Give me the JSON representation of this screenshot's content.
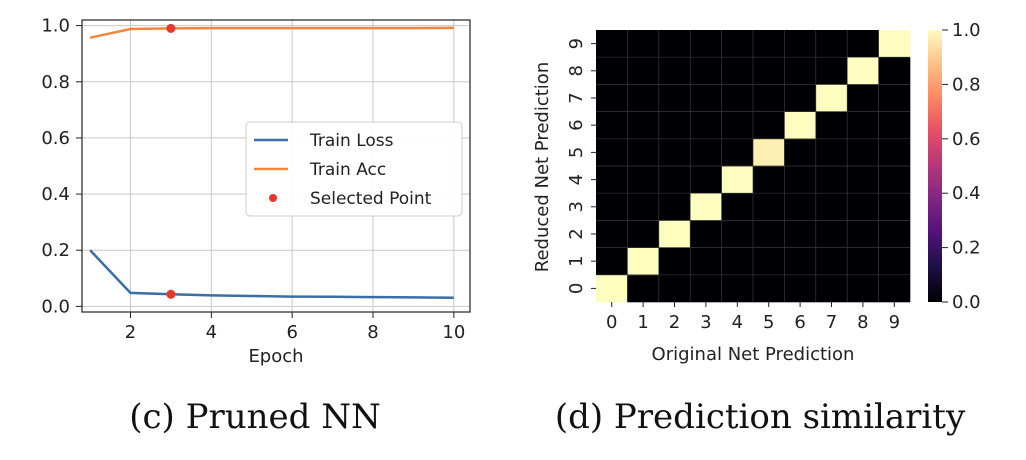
{
  "chart_data": [
    {
      "type": "line",
      "caption": "(c) Pruned NN",
      "xlabel": "Epoch",
      "ylabel": "",
      "x": [
        1,
        2,
        3,
        4,
        5,
        6,
        7,
        8,
        9,
        10
      ],
      "xlim": [
        0.8,
        10.4
      ],
      "ylim": [
        -0.02,
        1.02
      ],
      "xticks": [
        2,
        4,
        6,
        8,
        10
      ],
      "yticks": [
        0.0,
        0.2,
        0.4,
        0.6,
        0.8,
        1.0
      ],
      "xtick_labels": [
        "2",
        "4",
        "6",
        "8",
        "10"
      ],
      "ytick_labels": [
        "0.0",
        "0.2",
        "0.4",
        "0.6",
        "0.8",
        "1.0"
      ],
      "grid": true,
      "legend": "center-right",
      "series": [
        {
          "name": "Train Loss",
          "color": "#3b6ea5",
          "values": [
            0.2,
            0.048,
            0.043,
            0.039,
            0.037,
            0.035,
            0.034,
            0.033,
            0.032,
            0.031
          ]
        },
        {
          "name": "Train Acc",
          "color": "#f0883c",
          "values": [
            0.957,
            0.988,
            0.99,
            0.991,
            0.991,
            0.991,
            0.991,
            0.991,
            0.991,
            0.992
          ]
        }
      ],
      "points": {
        "name": "Selected Point",
        "color": "#e8382c",
        "x": [
          3,
          3
        ],
        "y": [
          0.99,
          0.043
        ]
      }
    },
    {
      "type": "heatmap",
      "caption": "(d) Prediction similarity",
      "xlabel": "Original Net Prediction",
      "ylabel": "Reduced Net Prediction",
      "x_categories": [
        "0",
        "1",
        "2",
        "3",
        "4",
        "5",
        "6",
        "7",
        "8",
        "9"
      ],
      "y_categories": [
        "0",
        "1",
        "2",
        "3",
        "4",
        "5",
        "6",
        "7",
        "8",
        "9"
      ],
      "diagonal_values": [
        1.0,
        1.0,
        1.0,
        1.0,
        1.0,
        0.97,
        1.0,
        1.0,
        1.0,
        1.0
      ],
      "off_diagonal_value": 0.0,
      "vmin": 0.0,
      "vmax": 1.0,
      "colormap": "magma",
      "colorbar_ticks": [
        "0.0",
        "0.2",
        "0.4",
        "0.6",
        "0.8",
        "1.0"
      ]
    }
  ]
}
